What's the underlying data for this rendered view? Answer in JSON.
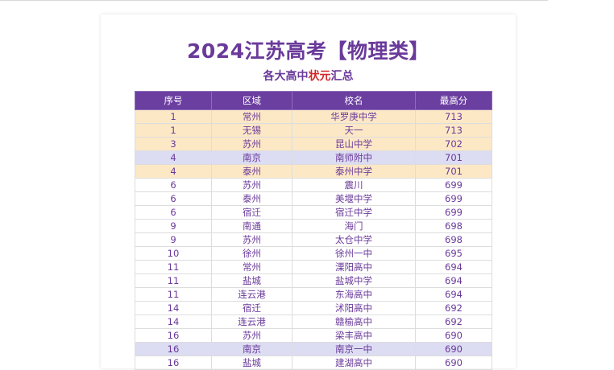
{
  "header": {
    "title": "2024江苏高考【物理类】",
    "subtitle": [
      "各大高中",
      "状元",
      "汇总"
    ]
  },
  "table": {
    "columns": [
      "序号",
      "区域",
      "校名",
      "最高分"
    ],
    "rows": [
      [
        1,
        "常州",
        "华罗庚中学",
        713
      ],
      [
        1,
        "无锡",
        "天一",
        713
      ],
      [
        3,
        "苏州",
        "昆山中学",
        702
      ],
      [
        4,
        "南京",
        "南师附中",
        701
      ],
      [
        4,
        "泰州",
        "泰州中学",
        701
      ],
      [
        6,
        "苏州",
        "震川",
        699
      ],
      [
        6,
        "泰州",
        "美堰中学",
        699
      ],
      [
        6,
        "宿迁",
        "宿迁中学",
        699
      ],
      [
        9,
        "南通",
        "海门",
        698
      ],
      [
        9,
        "苏州",
        "太仓中学",
        698
      ],
      [
        10,
        "徐州",
        "徐州一中",
        695
      ],
      [
        11,
        "常州",
        "溧阳高中",
        694
      ],
      [
        11,
        "盐城",
        "盐城中学",
        694
      ],
      [
        11,
        "连云港",
        "东海高中",
        694
      ],
      [
        14,
        "宿迁",
        "沭阳高中",
        692
      ],
      [
        14,
        "连云港",
        "赣榆高中",
        692
      ],
      [
        16,
        "苏州",
        "梁丰高中",
        690
      ],
      [
        16,
        "南京",
        "南京一中",
        690
      ],
      [
        16,
        "盐城",
        "建湖高中",
        690
      ]
    ]
  }
}
